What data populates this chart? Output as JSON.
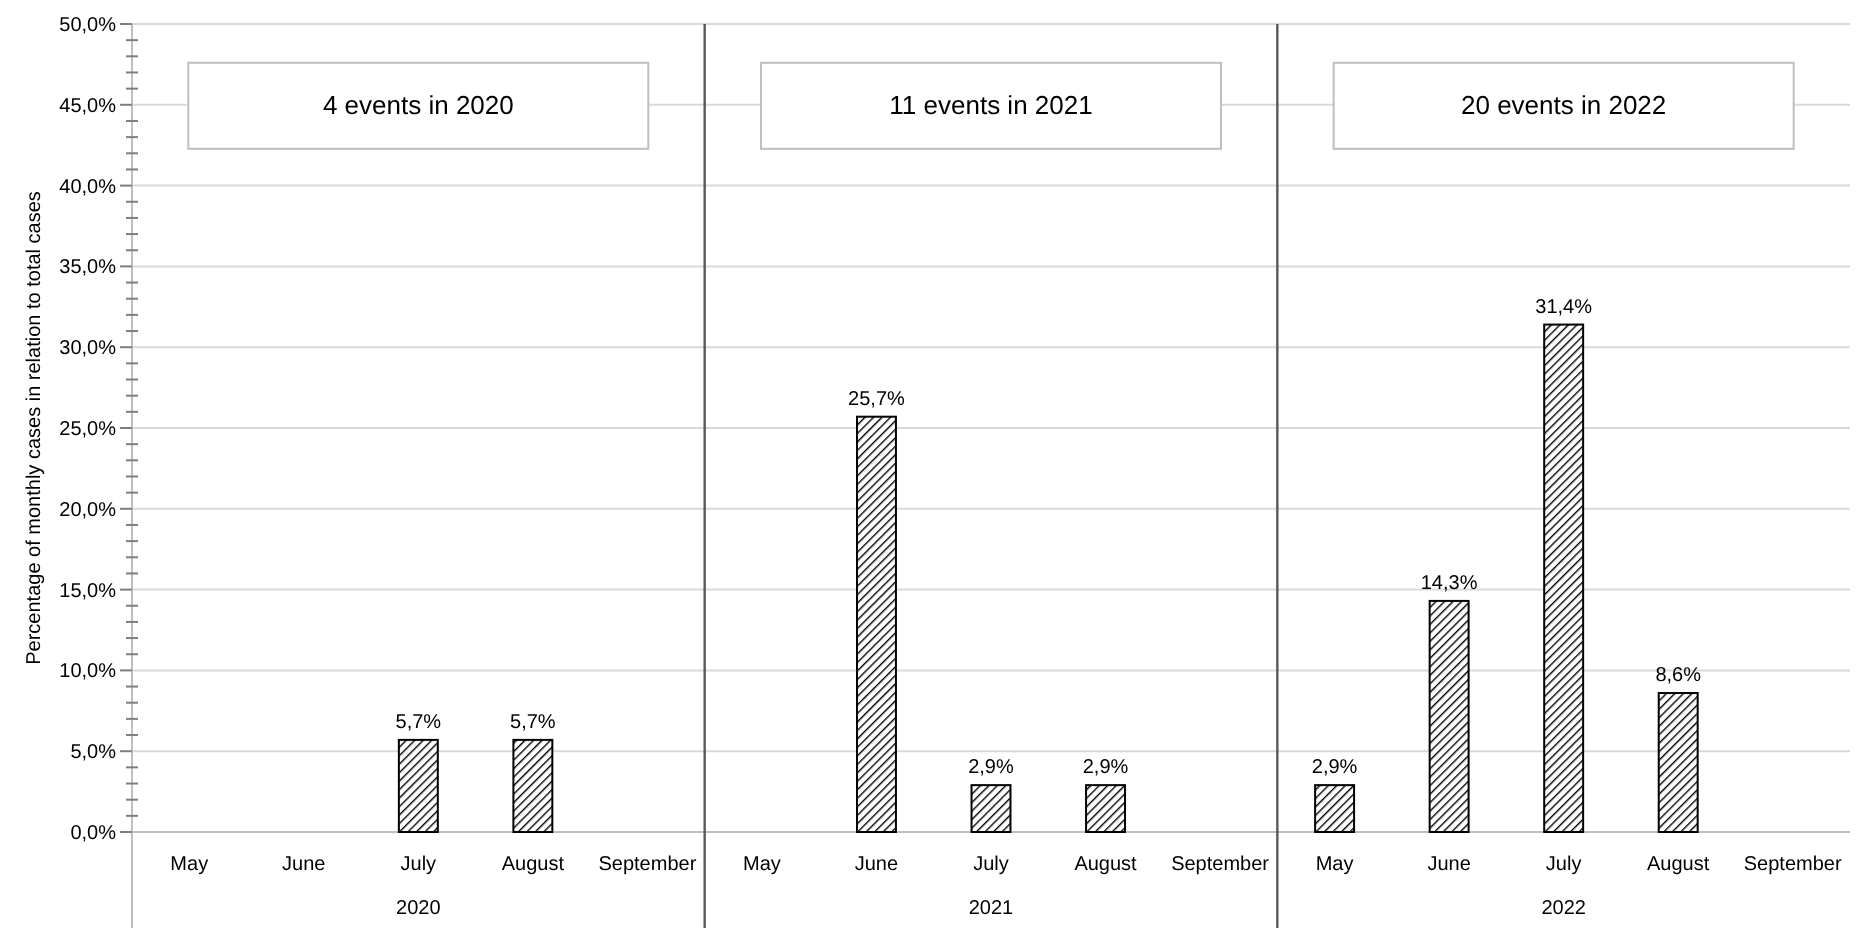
{
  "chart_data": {
    "type": "bar",
    "ylabel": "Percentage of monthly cases in relation to total cases",
    "categories": [
      "May",
      "June",
      "July",
      "August",
      "September",
      "May",
      "June",
      "July",
      "August",
      "September",
      "May",
      "June",
      "July",
      "August",
      "September"
    ],
    "values": [
      null,
      null,
      5.7,
      5.7,
      null,
      null,
      25.7,
      2.9,
      2.9,
      null,
      2.9,
      14.3,
      31.4,
      8.6,
      null
    ],
    "value_labels": [
      null,
      null,
      "5,7%",
      "5,7%",
      null,
      null,
      "25,7%",
      "2,9%",
      "2,9%",
      null,
      "2,9%",
      "14,3%",
      "31,4%",
      "8,6%",
      null
    ],
    "color": "#000000",
    "ylim": [
      0,
      50
    ],
    "yticks": [
      {
        "value": 0,
        "label": "0,0%"
      },
      {
        "value": 5,
        "label": "5,0%"
      },
      {
        "value": 10,
        "label": "10,0%"
      },
      {
        "value": 15,
        "label": "15,0%"
      },
      {
        "value": 20,
        "label": "20,0%"
      },
      {
        "value": 25,
        "label": "25,0%"
      },
      {
        "value": 30,
        "label": "30,0%"
      },
      {
        "value": 35,
        "label": "35,0%"
      },
      {
        "value": 40,
        "label": "40,0%"
      },
      {
        "value": 45,
        "label": "45,0%"
      },
      {
        "value": 50,
        "label": "50,0%"
      },
      {
        "value": 1,
        "label": null
      },
      {
        "value": 2,
        "label": null
      },
      {
        "value": 3,
        "label": null
      },
      {
        "value": 4,
        "label": null
      },
      {
        "value": 6,
        "label": null
      },
      {
        "value": 7,
        "label": null
      },
      {
        "value": 8,
        "label": null
      },
      {
        "value": 9,
        "label": null
      },
      {
        "value": 11,
        "label": null
      },
      {
        "value": 12,
        "label": null
      },
      {
        "value": 13,
        "label": null
      },
      {
        "value": 14,
        "label": null
      },
      {
        "value": 16,
        "label": null
      },
      {
        "value": 17,
        "label": null
      },
      {
        "value": 18,
        "label": null
      },
      {
        "value": 19,
        "label": null
      },
      {
        "value": 21,
        "label": null
      },
      {
        "value": 22,
        "label": null
      },
      {
        "value": 23,
        "label": null
      },
      {
        "value": 24,
        "label": null
      },
      {
        "value": 26,
        "label": null
      },
      {
        "value": 27,
        "label": null
      },
      {
        "value": 28,
        "label": null
      },
      {
        "value": 29,
        "label": null
      },
      {
        "value": 31,
        "label": null
      },
      {
        "value": 32,
        "label": null
      },
      {
        "value": 33,
        "label": null
      },
      {
        "value": 34,
        "label": null
      },
      {
        "value": 36,
        "label": null
      },
      {
        "value": 37,
        "label": null
      },
      {
        "value": 38,
        "label": null
      },
      {
        "value": 39,
        "label": null
      },
      {
        "value": 41,
        "label": null
      },
      {
        "value": 42,
        "label": null
      },
      {
        "value": 43,
        "label": null
      },
      {
        "value": 44,
        "label": null
      },
      {
        "value": 46,
        "label": null
      },
      {
        "value": 47,
        "label": null
      },
      {
        "value": 48,
        "label": null
      },
      {
        "value": 49,
        "label": null
      }
    ],
    "grid": "y",
    "annotations": [
      "4 events in 2020",
      "11 events in 2021",
      "20 events in 2022",
      "2020",
      "2021",
      "2022"
    ]
  }
}
